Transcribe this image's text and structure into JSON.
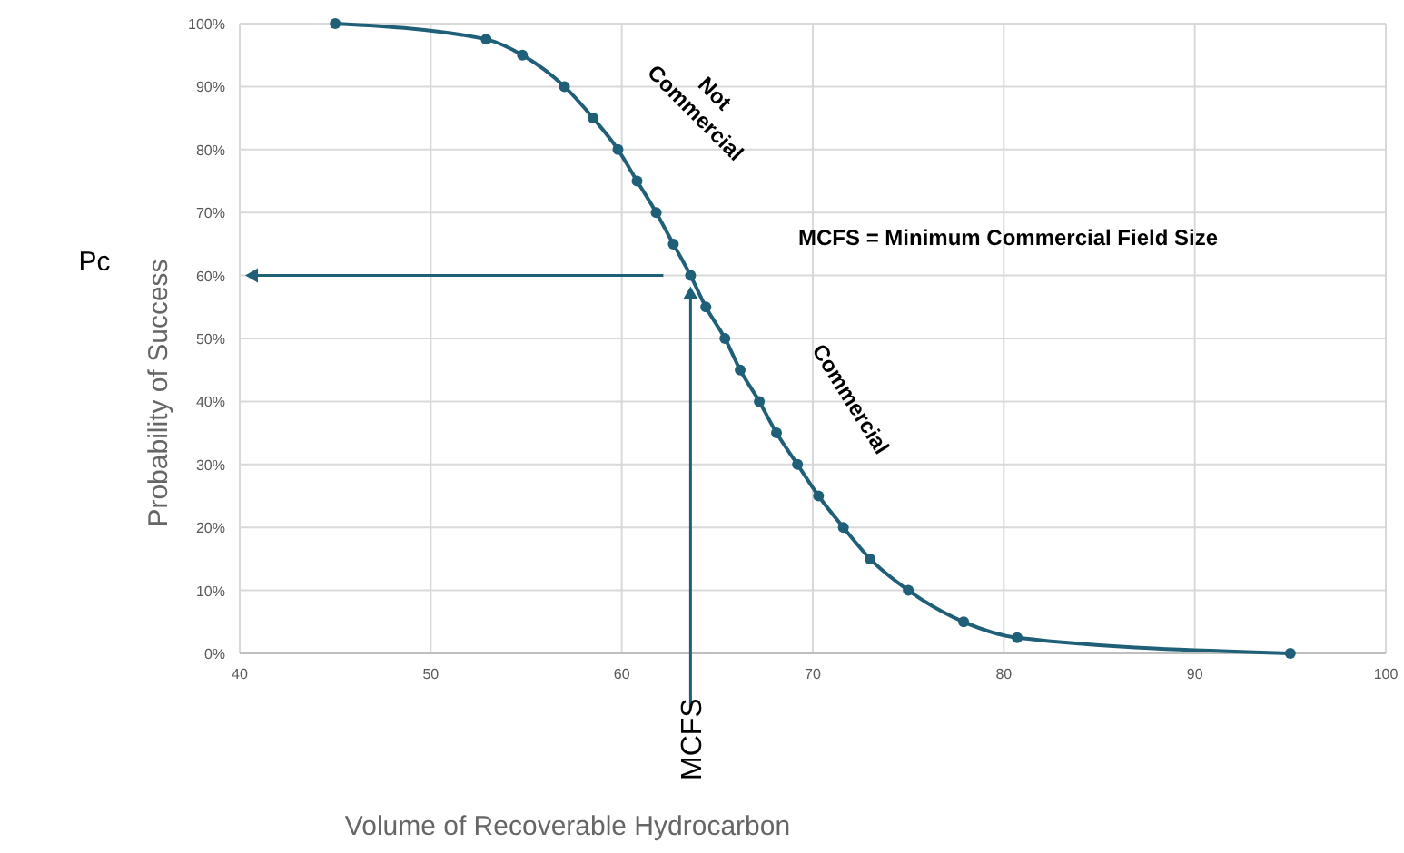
{
  "chart_data": {
    "type": "line",
    "xlabel": "Volume of Recoverable Hydrocarbon",
    "ylabel": "Probability of Success",
    "series": [
      {
        "color": "#1f5f78",
        "x": [
          45,
          52.9,
          54.8,
          57,
          58.5,
          59.8,
          60.8,
          61.8,
          62.7,
          63.6,
          64.4,
          65.4,
          66.2,
          67.2,
          68.1,
          69.2,
          70.3,
          71.6,
          73,
          75,
          77.9,
          80.7,
          95
        ],
        "values": [
          100,
          97.5,
          95,
          90,
          85,
          80,
          75,
          70,
          65,
          60,
          55,
          50,
          45,
          40,
          35,
          30,
          25,
          20,
          15,
          10,
          5,
          2.5,
          0
        ]
      }
    ],
    "xlim": [
      40,
      100
    ],
    "xticks": [
      40,
      50,
      60,
      70,
      80,
      90,
      100
    ],
    "ylim": [
      0,
      100
    ],
    "yticks": [
      {
        "value": 0,
        "label": "0%"
      },
      {
        "value": 10,
        "label": "10%"
      },
      {
        "value": 20,
        "label": "20%"
      },
      {
        "value": 30,
        "label": "30%"
      },
      {
        "value": 40,
        "label": "40%"
      },
      {
        "value": 50,
        "label": "50%"
      },
      {
        "value": 60,
        "label": "60%"
      },
      {
        "value": 70,
        "label": "70%"
      },
      {
        "value": 80,
        "label": "80%"
      },
      {
        "value": 90,
        "label": "90%"
      },
      {
        "value": 100,
        "label": "100%"
      }
    ],
    "grid": true,
    "marker": "circle",
    "line_style": "solid",
    "annotations": [
      {
        "text": "MCFS",
        "x": 63.6
      },
      "Pc",
      "Not Commercial",
      "Commercial",
      "MCFS = Minimum Commercial Field Size"
    ]
  }
}
